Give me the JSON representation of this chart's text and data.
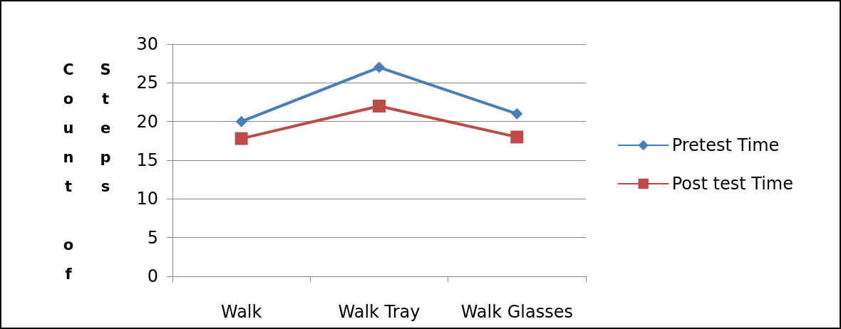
{
  "chart_data": {
    "type": "line",
    "ylabel": "Count of Steps",
    "categories": [
      "Walk",
      "Walk Tray",
      "Walk Glasses"
    ],
    "series": [
      {
        "name": "Pretest Time",
        "color": "#4a7ebb",
        "marker": "diamond",
        "values": [
          20,
          27,
          21
        ]
      },
      {
        "name": "Post test Time",
        "color": "#be4b48",
        "marker": "square",
        "values": [
          17.8,
          22,
          18
        ]
      }
    ],
    "ylim": [
      0,
      30
    ],
    "yticks": [
      0,
      5,
      10,
      15,
      20,
      25,
      30
    ],
    "grid": "y",
    "legend": "right",
    "line_style": "solid"
  }
}
